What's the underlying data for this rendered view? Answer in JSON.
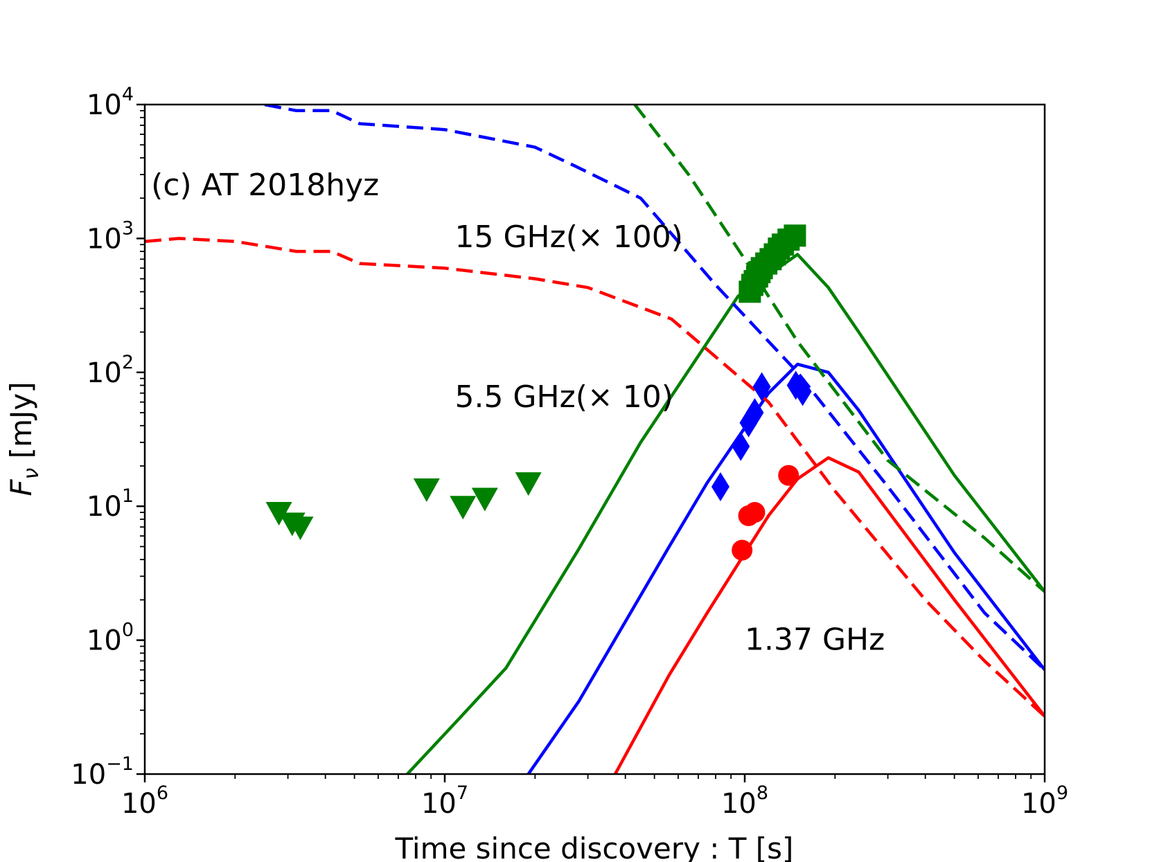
{
  "chart_data": {
    "type": "line",
    "title": "",
    "xlabel": "Time since discovery : T [s]",
    "ylabel_main": "F",
    "ylabel_sub": "ν",
    "ylabel_rest": " [mJy]",
    "x_scale": "log",
    "y_scale": "log",
    "xlim": [
      1000000,
      1000000000
    ],
    "ylim": [
      0.1,
      10000
    ],
    "grid": false,
    "x_ticks": [
      {
        "value": 1000000,
        "base": "10",
        "exp": "6"
      },
      {
        "value": 10000000,
        "base": "10",
        "exp": "7"
      },
      {
        "value": 100000000,
        "base": "10",
        "exp": "8"
      },
      {
        "value": 1000000000,
        "base": "10",
        "exp": "9"
      }
    ],
    "y_ticks": [
      {
        "value": 0.1,
        "base": "10",
        "exp": "−1"
      },
      {
        "value": 1,
        "base": "10",
        "exp": "0"
      },
      {
        "value": 10,
        "base": "10",
        "exp": "1"
      },
      {
        "value": 100,
        "base": "10",
        "exp": "2"
      },
      {
        "value": 1000,
        "base": "10",
        "exp": "3"
      },
      {
        "value": 10000,
        "base": "10",
        "exp": "4"
      }
    ],
    "annotations": [
      {
        "text": "(c) AT 2018hyz",
        "x": 1050000,
        "y": 2100
      },
      {
        "text": "15 GHz(× 100)",
        "x": 10800000,
        "y": 860
      },
      {
        "text": "5.5 GHz(× 10)",
        "x": 10800000,
        "y": 55
      },
      {
        "text": "1.37 GHz",
        "x": 100000000,
        "y": 0.85
      }
    ],
    "colors": {
      "green": "#008000",
      "blue": "#0000ff",
      "red": "#ff0000"
    },
    "series": [
      {
        "color": "#008000",
        "style": "solid",
        "points": [
          [
            7500000,
            0.1
          ],
          [
            11000000,
            0.25
          ],
          [
            16000000,
            0.62
          ],
          [
            28000000,
            4.8
          ],
          [
            45000000,
            30
          ],
          [
            95000000,
            370
          ],
          [
            150000000,
            760
          ],
          [
            190000000,
            430
          ],
          [
            240000000,
            200
          ],
          [
            500000000,
            17
          ],
          [
            1000000000,
            2.3
          ]
        ]
      },
      {
        "color": "#0000ff",
        "style": "solid",
        "points": [
          [
            19000000,
            0.1
          ],
          [
            28000000,
            0.35
          ],
          [
            56000000,
            5
          ],
          [
            75000000,
            15
          ],
          [
            120000000,
            70
          ],
          [
            150000000,
            115
          ],
          [
            190000000,
            100
          ],
          [
            240000000,
            52
          ],
          [
            500000000,
            4.5
          ],
          [
            1000000000,
            0.6
          ]
        ]
      },
      {
        "color": "#ff0000",
        "style": "solid",
        "points": [
          [
            37000000,
            0.1
          ],
          [
            56000000,
            0.55
          ],
          [
            75000000,
            1.6
          ],
          [
            120000000,
            8.5
          ],
          [
            150000000,
            16
          ],
          [
            190000000,
            23
          ],
          [
            240000000,
            18
          ],
          [
            500000000,
            2
          ],
          [
            1000000000,
            0.27
          ]
        ]
      },
      {
        "color": "#008000",
        "style": "dashed",
        "points": [
          [
            43000000,
            10000
          ],
          [
            65000000,
            3000
          ],
          [
            100000000,
            700
          ],
          [
            150000000,
            170
          ],
          [
            300000000,
            22
          ],
          [
            630000000,
            5.8
          ],
          [
            1000000000,
            2.3
          ]
        ]
      },
      {
        "color": "#0000ff",
        "style": "dashed",
        "points": [
          [
            1000000,
            13500
          ],
          [
            2500000,
            10000
          ],
          [
            3200000,
            9000
          ],
          [
            4200000,
            9000
          ],
          [
            5200000,
            7200
          ],
          [
            10000000,
            6500
          ],
          [
            20000000,
            4800
          ],
          [
            27000000,
            3500
          ],
          [
            45000000,
            2000
          ],
          [
            80000000,
            450
          ],
          [
            150000000,
            100
          ],
          [
            300000000,
            14
          ],
          [
            630000000,
            1.6
          ],
          [
            1000000000,
            0.6
          ]
        ]
      },
      {
        "color": "#ff0000",
        "style": "dashed",
        "points": [
          [
            1000000,
            950
          ],
          [
            1300000,
            1000
          ],
          [
            2000000,
            950
          ],
          [
            3200000,
            800
          ],
          [
            4200000,
            800
          ],
          [
            5200000,
            650
          ],
          [
            10000000,
            600
          ],
          [
            20000000,
            500
          ],
          [
            30000000,
            430
          ],
          [
            57000000,
            250
          ],
          [
            120000000,
            60
          ],
          [
            200000000,
            13
          ],
          [
            400000000,
            2
          ],
          [
            630000000,
            0.7
          ],
          [
            1000000000,
            0.27
          ]
        ]
      }
    ],
    "observations": [
      {
        "band": "15 GHz",
        "color": "#008000",
        "marker": "square",
        "points": [
          [
            104000000,
            400
          ],
          [
            106000000,
            450
          ],
          [
            108000000,
            480
          ],
          [
            110000000,
            520
          ],
          [
            112000000,
            560
          ],
          [
            114000000,
            600
          ],
          [
            118000000,
            650
          ],
          [
            122000000,
            700
          ],
          [
            126000000,
            760
          ],
          [
            130000000,
            840
          ],
          [
            134000000,
            900
          ],
          [
            140000000,
            980
          ],
          [
            147000000,
            1050
          ]
        ]
      },
      {
        "band": "5.5 GHz",
        "color": "#0000ff",
        "marker": "diamond",
        "points": [
          [
            83000000,
            14
          ],
          [
            97000000,
            28
          ],
          [
            103000000,
            42
          ],
          [
            108000000,
            50
          ],
          [
            114000000,
            78
          ],
          [
            148000000,
            80
          ],
          [
            156000000,
            72
          ]
        ]
      },
      {
        "band": "1.37 GHz",
        "color": "#ff0000",
        "marker": "circle",
        "points": [
          [
            98000000,
            4.7
          ],
          [
            103000000,
            8.5
          ],
          [
            108000000,
            9
          ],
          [
            140000000,
            17
          ]
        ]
      },
      {
        "band": "upper limits",
        "color": "#008000",
        "marker": "triangle-down",
        "points": [
          [
            2800000,
            9
          ],
          [
            3100000,
            7.5
          ],
          [
            3300000,
            7
          ],
          [
            8700000,
            13.5
          ],
          [
            11500000,
            10
          ],
          [
            13600000,
            11.5
          ],
          [
            19000000,
            15
          ]
        ]
      }
    ]
  }
}
